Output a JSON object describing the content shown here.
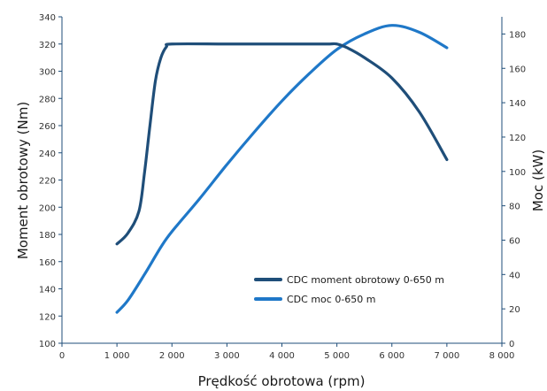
{
  "chart_data": {
    "type": "line",
    "title": "",
    "xlabel": "Prędkość obrotowa (rpm)",
    "ylabel_left": "Moment obrotowy (Nm)",
    "ylabel_right": "Moc (kW)",
    "xlim": [
      0,
      8000
    ],
    "ylim_left": [
      100,
      340
    ],
    "ylim_right": [
      0,
      190
    ],
    "x_ticks": [
      0,
      1000,
      2000,
      3000,
      4000,
      5000,
      6000,
      7000,
      8000
    ],
    "x_tick_labels": [
      "0",
      "1 000",
      "2 000",
      "3 000",
      "4 000",
      "5 000",
      "6 000",
      "7 000",
      "8 000"
    ],
    "y_left_ticks": [
      100,
      120,
      140,
      160,
      180,
      200,
      220,
      240,
      260,
      280,
      300,
      320,
      340
    ],
    "y_left_tick_labels": [
      "100",
      "120",
      "140",
      "160",
      "180",
      "200",
      "220",
      "240",
      "260",
      "280",
      "300",
      "320",
      "340"
    ],
    "y_right_ticks": [
      0,
      20,
      40,
      60,
      80,
      100,
      120,
      140,
      160,
      180
    ],
    "y_right_tick_labels": [
      "0",
      "20",
      "40",
      "60",
      "80",
      "100",
      "120",
      "140",
      "160",
      "180"
    ],
    "grid": false,
    "legend_position": "bottom-right",
    "series": [
      {
        "name": "CDC moment obrotowy 0-650 m",
        "axis": "left",
        "color": "#1f4e79",
        "x": [
          1000,
          1200,
          1400,
          1500,
          1600,
          1700,
          1800,
          1900,
          2000,
          3000,
          4000,
          4800,
          5000,
          5200,
          5500,
          6000,
          6500,
          7000
        ],
        "y": [
          173,
          181,
          197,
          225,
          260,
          293,
          310,
          318,
          320,
          320,
          320,
          320,
          320,
          317,
          310,
          295,
          270,
          235
        ]
      },
      {
        "name": "CDC moc 0-650 m",
        "axis": "right",
        "color": "#1f78c8",
        "x": [
          1000,
          1200,
          1500,
          1800,
          2000,
          2500,
          3000,
          3500,
          4000,
          4500,
          5000,
          5500,
          6000,
          6500,
          7000
        ],
        "y": [
          18,
          25,
          40,
          56,
          65,
          84,
          104,
          123,
          141,
          157,
          171,
          180,
          185,
          181,
          172
        ]
      }
    ]
  }
}
